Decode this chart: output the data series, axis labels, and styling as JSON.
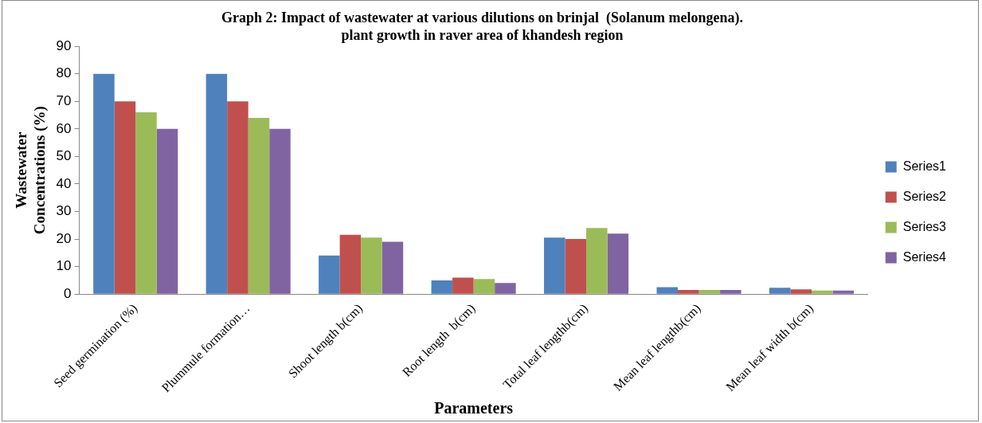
{
  "chart_data": {
    "type": "bar",
    "title": "Graph 2: Impact of wastewater at various dilutions on brinjal  (Solanum melongena).\nplant growth in raver area of khandesh region",
    "xlabel": "Parameters",
    "ylabel": "Wastewater\nConcentrations (%)",
    "categories": [
      "Seed germination (%)",
      "Plummule formation…",
      "Shoot length b(cm)",
      "Root length  b(cm)",
      "Total leaf lengthb(cm)",
      "Mean leaf lengthb(cm)",
      "Mean leaf width b(cm)"
    ],
    "series": [
      {
        "name": "Series1",
        "color": "#4f81bd",
        "values": [
          80,
          80,
          14,
          5,
          20.5,
          2.5,
          2.3
        ]
      },
      {
        "name": "Series2",
        "color": "#c0504d",
        "values": [
          70,
          70,
          21.5,
          6,
          20,
          1.5,
          1.7
        ]
      },
      {
        "name": "Series3",
        "color": "#9bbb59",
        "values": [
          66,
          64,
          20.5,
          5.5,
          24,
          1.5,
          1.3
        ]
      },
      {
        "name": "Series4",
        "color": "#8064a2",
        "values": [
          60,
          60,
          19,
          4,
          22,
          1.5,
          1.3
        ]
      }
    ],
    "ylim": [
      0,
      90
    ],
    "yticks": [
      0,
      10,
      20,
      30,
      40,
      50,
      60,
      70,
      80,
      90
    ],
    "grid": false,
    "legend": "right"
  }
}
